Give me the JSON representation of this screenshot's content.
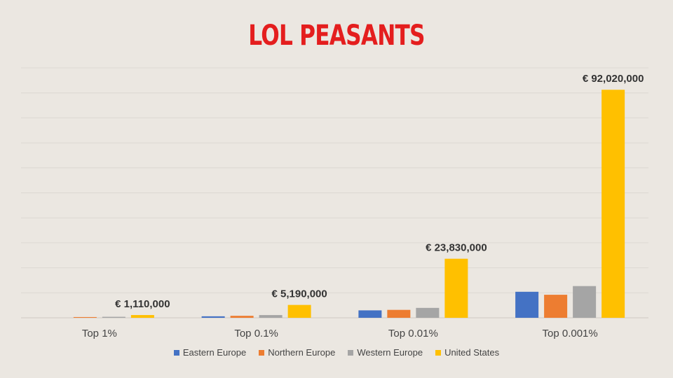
{
  "title": "LOL PEASANTS",
  "chart_data": {
    "type": "bar",
    "categories": [
      "Top 1%",
      "Top 0.1%",
      "Top 0.01%",
      "Top 0.001%"
    ],
    "series": [
      {
        "name": "Eastern Europe",
        "color": "#4472c4",
        "values": [
          0,
          600000,
          3000000,
          10500000
        ]
      },
      {
        "name": "Northern Europe",
        "color": "#ed7d31",
        "values": [
          300000,
          800000,
          3200000,
          9300000
        ]
      },
      {
        "name": "Western Europe",
        "color": "#a5a5a5",
        "values": [
          400000,
          1100000,
          4000000,
          12800000
        ]
      },
      {
        "name": "United States",
        "color": "#ffc000",
        "values": [
          1110000,
          5190000,
          23830000,
          92020000
        ],
        "labels": [
          "€ 1,110,000",
          "€ 5,190,000",
          "€ 23,830,000",
          "€ 92,020,000"
        ]
      }
    ],
    "ylim": [
      0,
      100000000
    ],
    "grid": true,
    "legend": "bottom",
    "xlabel": "",
    "ylabel": ""
  }
}
